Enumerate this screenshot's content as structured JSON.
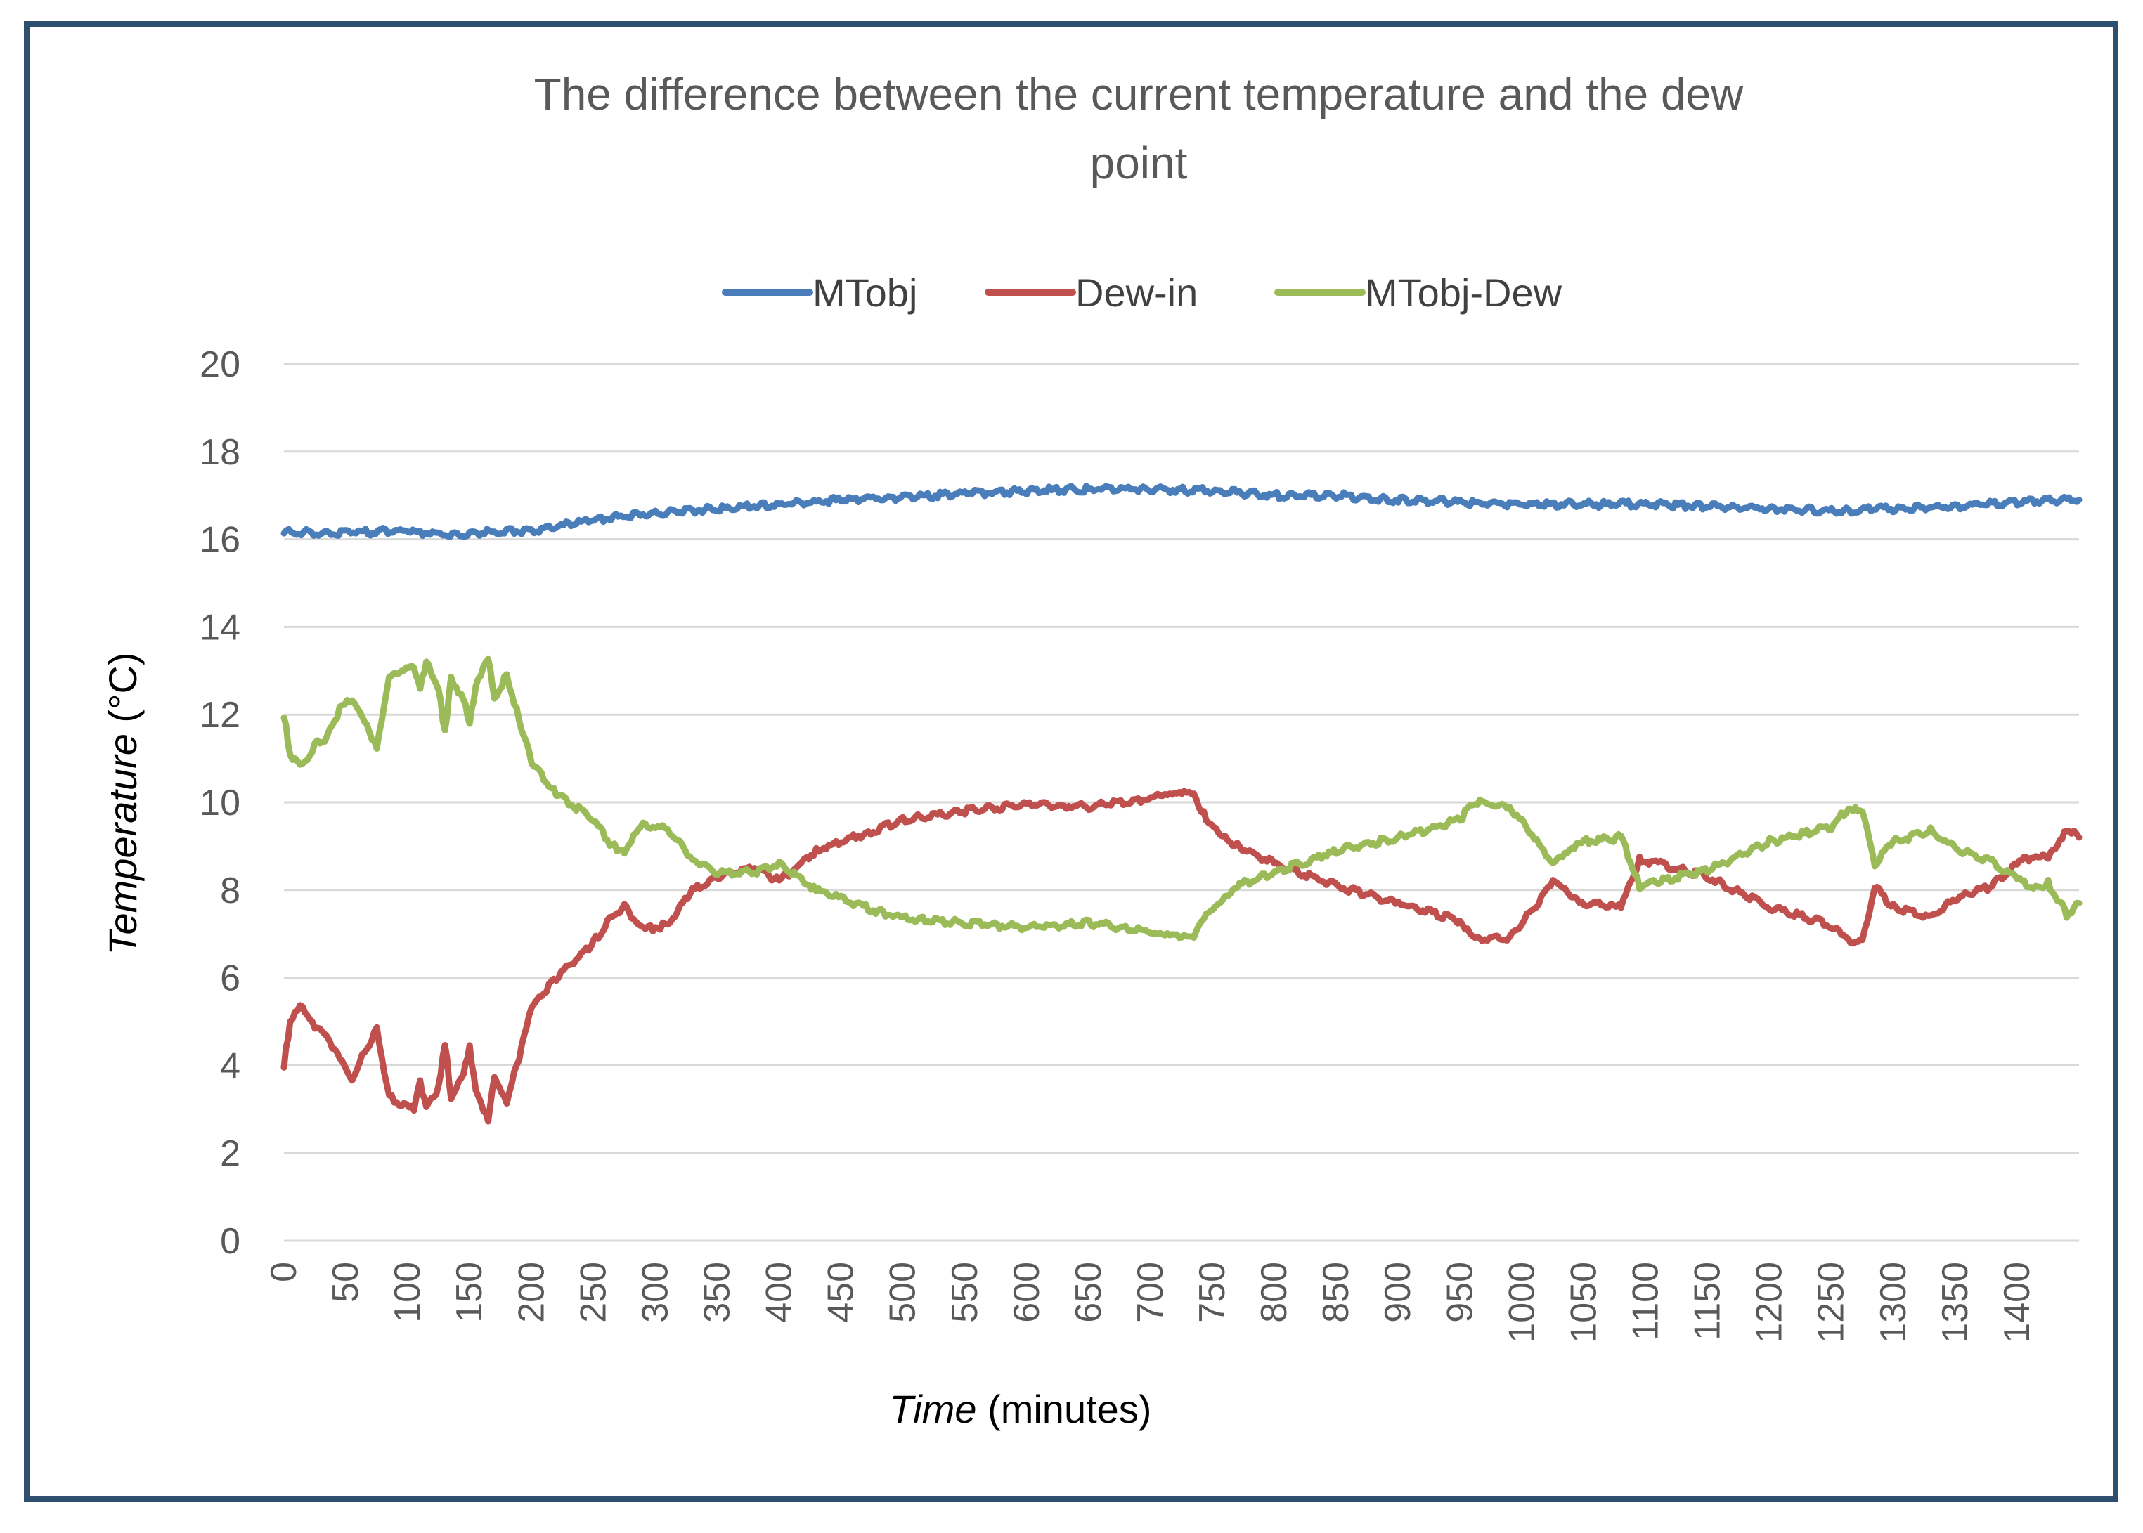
{
  "chart_data": {
    "type": "line",
    "title_line1": "The difference between the current temperature and the dew",
    "title_line2": "point",
    "xlabel_main": "Time",
    "xlabel_unit": "(minutes)",
    "ylabel_main": "Temperature",
    "ylabel_unit": "(°C)",
    "xlim": [
      0,
      1450
    ],
    "ylim": [
      0,
      20
    ],
    "ytick_step": 2,
    "xtick_step": 50,
    "grid": true,
    "legend_position": "top-center",
    "series": [
      {
        "name": "MTobj",
        "color": "#4a7ebb",
        "points": [
          [
            0,
            16.15
          ],
          [
            50,
            16.15
          ],
          [
            100,
            16.2
          ],
          [
            130,
            16.1
          ],
          [
            160,
            16.15
          ],
          [
            200,
            16.2
          ],
          [
            250,
            16.45
          ],
          [
            300,
            16.6
          ],
          [
            350,
            16.7
          ],
          [
            400,
            16.8
          ],
          [
            450,
            16.9
          ],
          [
            500,
            16.95
          ],
          [
            550,
            17.05
          ],
          [
            600,
            17.1
          ],
          [
            650,
            17.15
          ],
          [
            700,
            17.15
          ],
          [
            750,
            17.1
          ],
          [
            800,
            17.0
          ],
          [
            850,
            17.0
          ],
          [
            900,
            16.9
          ],
          [
            950,
            16.85
          ],
          [
            1000,
            16.8
          ],
          [
            1050,
            16.8
          ],
          [
            1100,
            16.8
          ],
          [
            1150,
            16.75
          ],
          [
            1200,
            16.7
          ],
          [
            1250,
            16.65
          ],
          [
            1300,
            16.7
          ],
          [
            1350,
            16.75
          ],
          [
            1400,
            16.85
          ],
          [
            1450,
            16.9
          ]
        ]
      },
      {
        "name": "Dew-in",
        "color": "#c0504d",
        "points": [
          [
            0,
            4.0
          ],
          [
            5,
            5.0
          ],
          [
            15,
            5.4
          ],
          [
            25,
            4.8
          ],
          [
            35,
            4.7
          ],
          [
            45,
            4.1
          ],
          [
            55,
            3.7
          ],
          [
            65,
            4.3
          ],
          [
            75,
            4.8
          ],
          [
            85,
            3.3
          ],
          [
            95,
            3.1
          ],
          [
            105,
            3.0
          ],
          [
            110,
            3.6
          ],
          [
            115,
            3.0
          ],
          [
            125,
            3.5
          ],
          [
            130,
            4.5
          ],
          [
            135,
            3.3
          ],
          [
            145,
            3.8
          ],
          [
            150,
            4.4
          ],
          [
            155,
            3.4
          ],
          [
            165,
            2.8
          ],
          [
            170,
            3.7
          ],
          [
            180,
            3.2
          ],
          [
            190,
            4.2
          ],
          [
            200,
            5.3
          ],
          [
            220,
            6.0
          ],
          [
            250,
            6.8
          ],
          [
            265,
            7.4
          ],
          [
            275,
            7.6
          ],
          [
            290,
            7.1
          ],
          [
            310,
            7.2
          ],
          [
            330,
            8.0
          ],
          [
            350,
            8.3
          ],
          [
            380,
            8.5
          ],
          [
            400,
            8.2
          ],
          [
            430,
            8.9
          ],
          [
            470,
            9.3
          ],
          [
            500,
            9.6
          ],
          [
            550,
            9.8
          ],
          [
            600,
            9.95
          ],
          [
            650,
            9.9
          ],
          [
            700,
            10.1
          ],
          [
            735,
            10.2
          ],
          [
            745,
            9.6
          ],
          [
            770,
            9.0
          ],
          [
            800,
            8.6
          ],
          [
            850,
            8.1
          ],
          [
            900,
            7.7
          ],
          [
            950,
            7.3
          ],
          [
            960,
            6.9
          ],
          [
            990,
            6.9
          ],
          [
            1010,
            7.6
          ],
          [
            1025,
            8.2
          ],
          [
            1050,
            7.7
          ],
          [
            1080,
            7.6
          ],
          [
            1095,
            8.7
          ],
          [
            1110,
            8.6
          ],
          [
            1150,
            8.3
          ],
          [
            1200,
            7.6
          ],
          [
            1250,
            7.2
          ],
          [
            1260,
            6.9
          ],
          [
            1275,
            6.8
          ],
          [
            1285,
            8.1
          ],
          [
            1300,
            7.6
          ],
          [
            1330,
            7.4
          ],
          [
            1350,
            7.8
          ],
          [
            1380,
            8.1
          ],
          [
            1400,
            8.6
          ],
          [
            1415,
            8.8
          ],
          [
            1425,
            8.7
          ],
          [
            1440,
            9.4
          ],
          [
            1450,
            9.2
          ]
        ]
      },
      {
        "name": "MTobj-Dew",
        "color": "#9bbb59",
        "points": [
          [
            0,
            12.0
          ],
          [
            5,
            11.1
          ],
          [
            15,
            10.8
          ],
          [
            25,
            11.3
          ],
          [
            35,
            11.5
          ],
          [
            45,
            12.1
          ],
          [
            55,
            12.4
          ],
          [
            65,
            11.8
          ],
          [
            75,
            11.3
          ],
          [
            85,
            12.8
          ],
          [
            95,
            13.0
          ],
          [
            105,
            13.1
          ],
          [
            110,
            12.6
          ],
          [
            115,
            13.2
          ],
          [
            125,
            12.6
          ],
          [
            130,
            11.6
          ],
          [
            135,
            12.8
          ],
          [
            145,
            12.4
          ],
          [
            150,
            11.8
          ],
          [
            155,
            12.7
          ],
          [
            165,
            13.3
          ],
          [
            170,
            12.4
          ],
          [
            180,
            12.9
          ],
          [
            190,
            11.9
          ],
          [
            200,
            10.9
          ],
          [
            220,
            10.2
          ],
          [
            250,
            9.6
          ],
          [
            265,
            9.0
          ],
          [
            275,
            8.9
          ],
          [
            290,
            9.5
          ],
          [
            310,
            9.4
          ],
          [
            330,
            8.7
          ],
          [
            350,
            8.4
          ],
          [
            380,
            8.4
          ],
          [
            400,
            8.6
          ],
          [
            430,
            8.0
          ],
          [
            470,
            7.6
          ],
          [
            500,
            7.35
          ],
          [
            550,
            7.25
          ],
          [
            600,
            7.15
          ],
          [
            650,
            7.25
          ],
          [
            700,
            7.05
          ],
          [
            735,
            6.95
          ],
          [
            745,
            7.5
          ],
          [
            770,
            8.1
          ],
          [
            800,
            8.4
          ],
          [
            850,
            8.9
          ],
          [
            900,
            9.2
          ],
          [
            950,
            9.6
          ],
          [
            960,
            10.0
          ],
          [
            990,
            9.9
          ],
          [
            1010,
            9.2
          ],
          [
            1025,
            8.6
          ],
          [
            1050,
            9.1
          ],
          [
            1080,
            9.2
          ],
          [
            1095,
            8.1
          ],
          [
            1110,
            8.2
          ],
          [
            1150,
            8.45
          ],
          [
            1200,
            9.1
          ],
          [
            1250,
            9.45
          ],
          [
            1260,
            9.75
          ],
          [
            1275,
            9.85
          ],
          [
            1285,
            8.6
          ],
          [
            1300,
            9.1
          ],
          [
            1330,
            9.35
          ],
          [
            1350,
            8.95
          ],
          [
            1380,
            8.65
          ],
          [
            1400,
            8.25
          ],
          [
            1415,
            8.05
          ],
          [
            1425,
            8.15
          ],
          [
            1440,
            7.45
          ],
          [
            1450,
            7.7
          ]
        ]
      }
    ]
  }
}
